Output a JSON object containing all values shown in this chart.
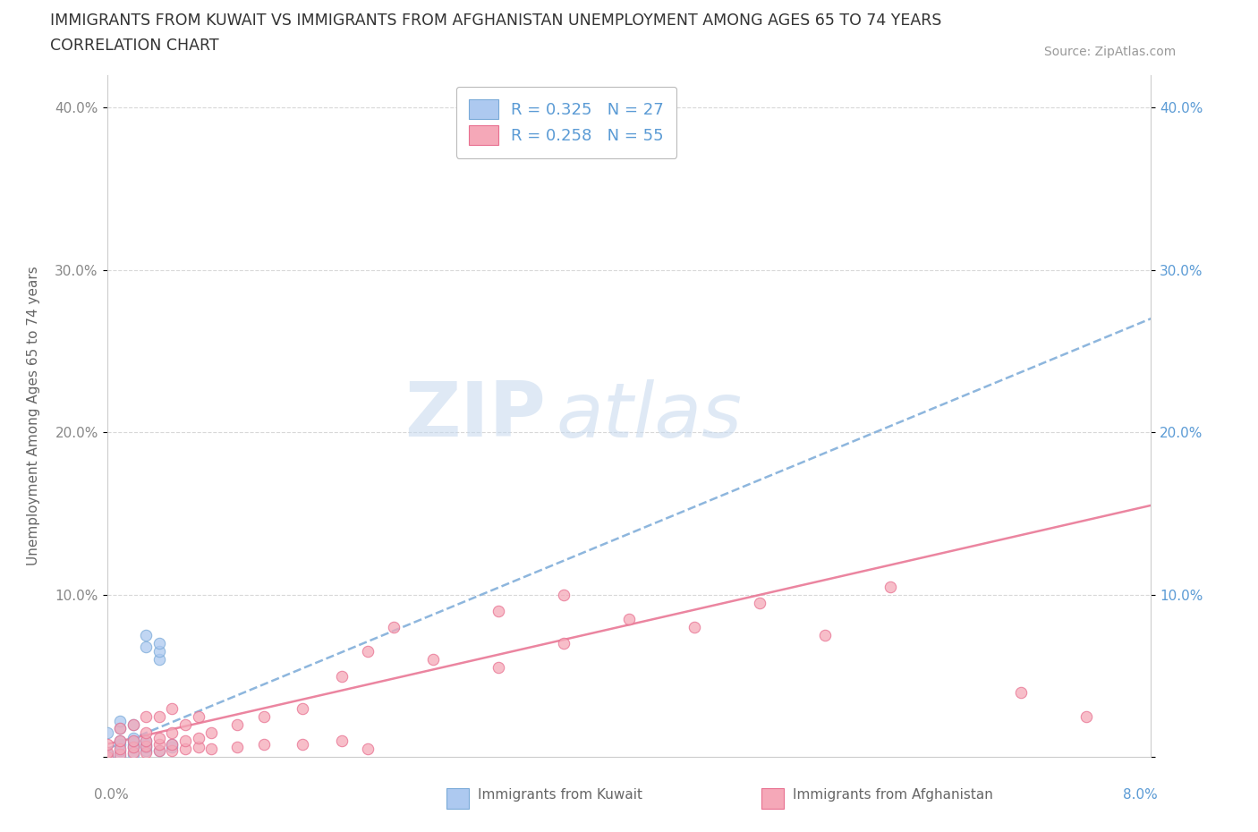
{
  "title_line1": "IMMIGRANTS FROM KUWAIT VS IMMIGRANTS FROM AFGHANISTAN UNEMPLOYMENT AMONG AGES 65 TO 74 YEARS",
  "title_line2": "CORRELATION CHART",
  "source_text": "Source: ZipAtlas.com",
  "ylabel": "Unemployment Among Ages 65 to 74 years",
  "xlim": [
    0.0,
    0.08
  ],
  "ylim": [
    0.0,
    0.42
  ],
  "yticks": [
    0.0,
    0.1,
    0.2,
    0.3,
    0.4
  ],
  "yticklabels": [
    "",
    "10.0%",
    "20.0%",
    "30.0%",
    "40.0%"
  ],
  "kuwait_color": "#adc9f0",
  "afghanistan_color": "#f5a8b8",
  "kuwait_edge_color": "#7aaad8",
  "afghanistan_edge_color": "#e87090",
  "kuwait_line_color": "#7aaad8",
  "afghanistan_line_color": "#e87090",
  "kuwait_R": 0.325,
  "kuwait_N": 27,
  "afghanistan_R": 0.258,
  "afghanistan_N": 55,
  "legend_label_kuwait": "Immigrants from Kuwait",
  "legend_label_afghanistan": "Immigrants from Afghanistan",
  "watermark_zip": "ZIP",
  "watermark_atlas": "atlas",
  "background_color": "#ffffff",
  "grid_color": "#d8d8d8",
  "title_color": "#333333",
  "right_ytick_color": "#5b9bd5",
  "kuwait_x": [
    0.0,
    0.0,
    0.001,
    0.001,
    0.001,
    0.001,
    0.002,
    0.002,
    0.002,
    0.002,
    0.002,
    0.003,
    0.003,
    0.003,
    0.003,
    0.003,
    0.003,
    0.004,
    0.004,
    0.004,
    0.004,
    0.005,
    0.005,
    0.0,
    0.001,
    0.002,
    0.001
  ],
  "kuwait_y": [
    0.0,
    0.002,
    0.0,
    0.004,
    0.008,
    0.01,
    0.002,
    0.006,
    0.008,
    0.01,
    0.012,
    0.004,
    0.006,
    0.008,
    0.01,
    0.068,
    0.075,
    0.004,
    0.06,
    0.065,
    0.07,
    0.006,
    0.008,
    0.015,
    0.018,
    0.02,
    0.022
  ],
  "afghanistan_x": [
    0.0,
    0.0,
    0.0,
    0.001,
    0.001,
    0.001,
    0.001,
    0.002,
    0.002,
    0.002,
    0.002,
    0.003,
    0.003,
    0.003,
    0.003,
    0.003,
    0.004,
    0.004,
    0.004,
    0.004,
    0.005,
    0.005,
    0.005,
    0.005,
    0.006,
    0.006,
    0.006,
    0.007,
    0.007,
    0.007,
    0.008,
    0.008,
    0.01,
    0.01,
    0.012,
    0.012,
    0.015,
    0.015,
    0.018,
    0.018,
    0.02,
    0.02,
    0.022,
    0.025,
    0.03,
    0.03,
    0.035,
    0.035,
    0.04,
    0.045,
    0.05,
    0.055,
    0.06,
    0.07,
    0.075
  ],
  "afghanistan_y": [
    0.0,
    0.003,
    0.008,
    0.002,
    0.005,
    0.01,
    0.018,
    0.003,
    0.006,
    0.01,
    0.02,
    0.003,
    0.007,
    0.01,
    0.015,
    0.025,
    0.004,
    0.008,
    0.012,
    0.025,
    0.004,
    0.008,
    0.015,
    0.03,
    0.005,
    0.01,
    0.02,
    0.006,
    0.012,
    0.025,
    0.005,
    0.015,
    0.006,
    0.02,
    0.008,
    0.025,
    0.008,
    0.03,
    0.01,
    0.05,
    0.005,
    0.065,
    0.08,
    0.06,
    0.055,
    0.09,
    0.07,
    0.1,
    0.085,
    0.08,
    0.095,
    0.075,
    0.105,
    0.04,
    0.025
  ],
  "kuwait_trend_x": [
    0.0,
    0.08
  ],
  "kuwait_trend_y": [
    0.005,
    0.27
  ],
  "afghanistan_trend_x": [
    0.0,
    0.08
  ],
  "afghanistan_trend_y": [
    0.008,
    0.155
  ]
}
